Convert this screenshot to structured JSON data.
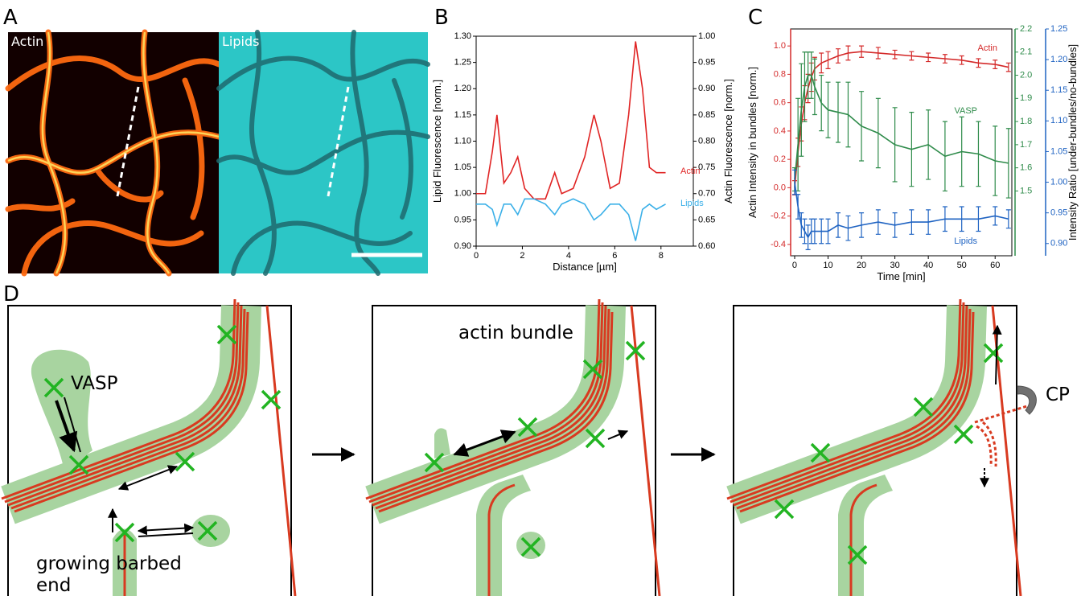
{
  "panel_labels": [
    "A",
    "B",
    "C",
    "D"
  ],
  "panel_a": {
    "labels": [
      "Actin",
      "Lipids"
    ]
  },
  "chart_data": [
    {
      "type": "line",
      "xlabel": "Distance [µm]",
      "ylabel": "Lipid Fluorescence [norm.]",
      "y2label": "Actin Fluorescence [norm.]",
      "x": [
        0,
        0.4,
        0.7,
        0.9,
        1.2,
        1.5,
        1.8,
        2.1,
        2.5,
        3.0,
        3.4,
        3.7,
        4.2,
        4.7,
        5.1,
        5.4,
        5.8,
        6.2,
        6.6,
        6.9,
        7.2,
        7.5,
        7.8,
        8.2
      ],
      "xlim": [
        0,
        9.4
      ],
      "xticks": [
        0,
        2,
        4,
        6,
        8
      ],
      "ylim": [
        0.9,
        1.3
      ],
      "yticks": [
        {
          "value": 0.9,
          "label": "0.90"
        },
        0.95,
        {
          "value": 1.0,
          "label": "1.00"
        },
        1.05,
        {
          "value": 1.1,
          "label": "1.10"
        },
        1.15,
        {
          "value": 1.2,
          "label": "1.20"
        },
        1.25,
        {
          "value": 1.3,
          "label": "1.30"
        }
      ],
      "y2lim": [
        0.6,
        1.0
      ],
      "y2ticks": [
        {
          "value": 0.6,
          "label": "0.60"
        },
        0.65,
        {
          "value": 0.7,
          "label": "0.70"
        },
        0.75,
        {
          "value": 0.8,
          "label": "0.80"
        },
        0.85,
        {
          "value": 0.9,
          "label": "0.90"
        },
        0.95,
        {
          "value": 1.0,
          "label": "1.00"
        }
      ],
      "series": [
        {
          "name": "Actin",
          "color": "#e02424",
          "axis": "y2",
          "values": [
            0.7,
            0.7,
            0.78,
            0.85,
            0.72,
            0.74,
            0.77,
            0.71,
            0.69,
            0.69,
            0.74,
            0.7,
            0.71,
            0.77,
            0.85,
            0.8,
            0.71,
            0.72,
            0.85,
            0.99,
            0.9,
            0.75,
            0.74,
            0.74
          ]
        },
        {
          "name": "Lipids",
          "color": "#3bb0e8",
          "axis": "y",
          "values": [
            0.98,
            0.98,
            0.97,
            0.94,
            0.98,
            0.98,
            0.96,
            0.99,
            0.99,
            0.98,
            0.96,
            0.98,
            0.99,
            0.98,
            0.95,
            0.96,
            0.98,
            0.98,
            0.96,
            0.91,
            0.97,
            0.98,
            0.97,
            0.98
          ]
        }
      ]
    },
    {
      "type": "line",
      "xlabel": "Time [min]",
      "ylabel": "Actin Intensity in bundles [norm.]",
      "y3label": "Intensity Ratio [under-bundles/no-bundles]",
      "x": [
        0,
        1,
        2,
        3,
        4,
        5,
        6,
        8,
        10,
        13,
        16,
        20,
        25,
        30,
        35,
        40,
        45,
        50,
        55,
        60,
        64
      ],
      "xlim": [
        -1.2,
        65
      ],
      "xticks": [
        0,
        10,
        20,
        30,
        40,
        50,
        60
      ],
      "ylim": [
        -0.48,
        1.12
      ],
      "yticks": [
        -0.4,
        -0.2,
        {
          "value": 0,
          "label": "0.0"
        },
        0.2,
        0.4,
        0.6,
        0.8,
        {
          "value": 1.0,
          "label": "1.0"
        }
      ],
      "y2lim": [
        1.22,
        2.2
      ],
      "y2ticks": [
        1.5,
        1.6,
        1.7,
        1.8,
        1.9,
        {
          "value": 2.0,
          "label": "2.0"
        },
        2.1,
        2.2
      ],
      "y3lim": [
        0.88,
        1.25
      ],
      "y3ticks": [
        {
          "value": 0.9,
          "label": "0.90"
        },
        0.95,
        {
          "value": 1.0,
          "label": "1.00"
        },
        1.05,
        {
          "value": 1.1,
          "label": "1.10"
        },
        1.15,
        {
          "value": 1.2,
          "label": "1.20"
        },
        1.25
      ],
      "series": [
        {
          "name": "Actin",
          "color": "#d42a2a",
          "axis": "y",
          "values": [
            0.0,
            0.25,
            0.45,
            0.6,
            0.7,
            0.78,
            0.84,
            0.88,
            0.9,
            0.93,
            0.95,
            0.96,
            0.95,
            0.94,
            0.93,
            0.92,
            0.91,
            0.9,
            0.88,
            0.87,
            0.85
          ],
          "errors": [
            0.05,
            0.1,
            0.12,
            0.12,
            0.1,
            0.1,
            0.08,
            0.07,
            0.06,
            0.05,
            0.05,
            0.04,
            0.04,
            0.03,
            0.03,
            0.03,
            0.03,
            0.03,
            0.03,
            0.03,
            0.03
          ]
        },
        {
          "name": "VASP",
          "color": "#2e8b4a",
          "axis": "y2",
          "values": [
            1.55,
            1.7,
            1.85,
            1.95,
            2.0,
            2.0,
            1.95,
            1.88,
            1.85,
            1.84,
            1.83,
            1.78,
            1.75,
            1.7,
            1.68,
            1.7,
            1.65,
            1.67,
            1.66,
            1.63,
            1.62
          ],
          "errors": [
            0.05,
            0.2,
            0.2,
            0.15,
            0.1,
            0.1,
            0.12,
            0.12,
            0.12,
            0.13,
            0.14,
            0.15,
            0.15,
            0.16,
            0.16,
            0.15,
            0.15,
            0.15,
            0.14,
            0.15,
            0.15
          ]
        },
        {
          "name": "Lipids",
          "color": "#1f63c2",
          "axis": "y3",
          "values": [
            1.0,
            0.96,
            0.93,
            0.92,
            0.91,
            0.92,
            0.92,
            0.92,
            0.92,
            0.93,
            0.925,
            0.93,
            0.935,
            0.93,
            0.935,
            0.935,
            0.94,
            0.94,
            0.94,
            0.945,
            0.94
          ],
          "errors": [
            0.02,
            0.02,
            0.02,
            0.02,
            0.02,
            0.02,
            0.02,
            0.02,
            0.02,
            0.02,
            0.02,
            0.02,
            0.02,
            0.02,
            0.02,
            0.02,
            0.02,
            0.02,
            0.02,
            0.015,
            0.015
          ]
        }
      ]
    }
  ],
  "panel_d": {
    "vasp": "VASP",
    "barbed_end": [
      "growing barbed",
      "end"
    ],
    "actin_bundle": "actin bundle",
    "cp": "CP"
  }
}
